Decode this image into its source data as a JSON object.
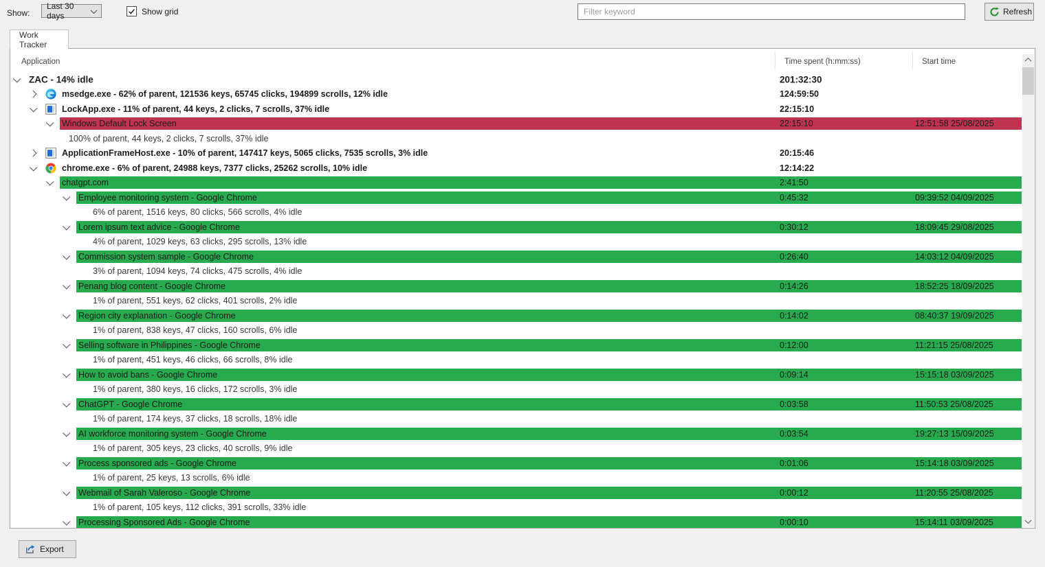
{
  "toolbar": {
    "show_label": "Show:",
    "range_select": {
      "value": "Last 30 days"
    },
    "show_grid": {
      "label": "Show grid",
      "checked": true
    },
    "filter": {
      "placeholder": "Filter keyword",
      "value": ""
    },
    "refresh_label": "Refresh"
  },
  "tab": {
    "label": "Work Tracker"
  },
  "table": {
    "columns": [
      "Application",
      "Time spent (h:mm:ss)",
      "Start time"
    ],
    "rows": [
      {
        "type": "app",
        "level": 0,
        "chevron": "down",
        "icon": null,
        "label": "ZAC - 14% idle",
        "bold": true,
        "big": true,
        "highlight": null,
        "time": "201:32:30",
        "start": ""
      },
      {
        "type": "app",
        "level": 1,
        "chevron": "right",
        "icon": "edge",
        "label": "msedge.exe - 62% of parent, 121536 keys, 65745 clicks, 194899 scrolls, 12% idle",
        "bold": true,
        "highlight": null,
        "time": "124:59:50",
        "start": ""
      },
      {
        "type": "app",
        "level": 1,
        "chevron": "down",
        "icon": "window",
        "label": "LockApp.exe - 11% of parent, 44 keys, 2 clicks, 7 scrolls, 37% idle",
        "bold": true,
        "highlight": null,
        "time": "22:15:10",
        "start": ""
      },
      {
        "type": "app",
        "level": 2,
        "chevron": "down",
        "icon": null,
        "label": "Windows Default Lock Screen",
        "bold": false,
        "highlight": "red",
        "time": "22:15:10",
        "start": "12:51:58 25/08/2025"
      },
      {
        "type": "detail",
        "level": 2,
        "label": "100% of parent, 44 keys, 2 clicks, 7 scrolls, 37% idle"
      },
      {
        "type": "app",
        "level": 1,
        "chevron": "right",
        "icon": "window",
        "label": "ApplicationFrameHost.exe - 10% of parent, 147417 keys, 5065 clicks, 7535 scrolls, 3% idle",
        "bold": true,
        "highlight": null,
        "time": "20:15:46",
        "start": ""
      },
      {
        "type": "app",
        "level": 1,
        "chevron": "down",
        "icon": "chrome",
        "label": "chrome.exe - 6% of parent, 24988 keys, 7377 clicks, 25262 scrolls, 10% idle",
        "bold": true,
        "highlight": null,
        "time": "12:14:22",
        "start": ""
      },
      {
        "type": "app",
        "level": 2,
        "chevron": "down",
        "icon": null,
        "label": "chatgpt.com",
        "bold": false,
        "highlight": "green",
        "time": "2:41:50",
        "start": ""
      },
      {
        "type": "app",
        "level": 3,
        "chevron": "down",
        "icon": null,
        "label": "Employee monitoring system - Google Chrome",
        "bold": false,
        "highlight": "green",
        "time": "0:45:32",
        "start": "09:39:52 04/09/2025"
      },
      {
        "type": "detail",
        "level": 3,
        "label": "6% of parent, 1516 keys, 80 clicks, 566 scrolls, 4% idle"
      },
      {
        "type": "app",
        "level": 3,
        "chevron": "down",
        "icon": null,
        "label": "Lorem ipsum text advice - Google Chrome",
        "bold": false,
        "highlight": "green",
        "time": "0:30:12",
        "start": "18:09:45 29/08/2025"
      },
      {
        "type": "detail",
        "level": 3,
        "label": "4% of parent, 1029 keys, 63 clicks, 295 scrolls, 13% idle"
      },
      {
        "type": "app",
        "level": 3,
        "chevron": "down",
        "icon": null,
        "label": "Commission system sample - Google Chrome",
        "bold": false,
        "highlight": "green",
        "time": "0:26:40",
        "start": "14:03:12 04/09/2025"
      },
      {
        "type": "detail",
        "level": 3,
        "label": "3% of parent, 1094 keys, 74 clicks, 475 scrolls, 4% idle"
      },
      {
        "type": "app",
        "level": 3,
        "chevron": "down",
        "icon": null,
        "label": "Penang blog content - Google Chrome",
        "bold": false,
        "highlight": "green",
        "time": "0:14:26",
        "start": "18:52:25 18/09/2025"
      },
      {
        "type": "detail",
        "level": 3,
        "label": "1% of parent, 551 keys, 62 clicks, 401 scrolls, 2% idle"
      },
      {
        "type": "app",
        "level": 3,
        "chevron": "down",
        "icon": null,
        "label": "Region city explanation - Google Chrome",
        "bold": false,
        "highlight": "green",
        "time": "0:14:02",
        "start": "08:40:37 19/09/2025"
      },
      {
        "type": "detail",
        "level": 3,
        "label": "1% of parent, 838 keys, 47 clicks, 160 scrolls, 6% idle"
      },
      {
        "type": "app",
        "level": 3,
        "chevron": "down",
        "icon": null,
        "label": "Selling software in Philippines - Google Chrome",
        "bold": false,
        "highlight": "green",
        "time": "0:12:00",
        "start": "11:21:15 25/08/2025"
      },
      {
        "type": "detail",
        "level": 3,
        "label": "1% of parent, 451 keys, 46 clicks, 66 scrolls, 8% idle"
      },
      {
        "type": "app",
        "level": 3,
        "chevron": "down",
        "icon": null,
        "label": "How to avoid bans - Google Chrome",
        "bold": false,
        "highlight": "green",
        "time": "0:09:14",
        "start": "15:15:18 03/09/2025"
      },
      {
        "type": "detail",
        "level": 3,
        "label": "1% of parent, 380 keys, 16 clicks, 172 scrolls, 3% idle"
      },
      {
        "type": "app",
        "level": 3,
        "chevron": "down",
        "icon": null,
        "label": "ChatGPT - Google Chrome",
        "bold": false,
        "highlight": "green",
        "time": "0:03:58",
        "start": "11:50:53 25/08/2025"
      },
      {
        "type": "detail",
        "level": 3,
        "label": "1% of parent, 174 keys, 37 clicks, 18 scrolls, 18% idle"
      },
      {
        "type": "app",
        "level": 3,
        "chevron": "down",
        "icon": null,
        "label": "AI workforce monitoring system - Google Chrome",
        "bold": false,
        "highlight": "green",
        "time": "0:03:54",
        "start": "19:27:13 15/09/2025"
      },
      {
        "type": "detail",
        "level": 3,
        "label": "1% of parent, 305 keys, 23 clicks, 40 scrolls, 9% idle"
      },
      {
        "type": "app",
        "level": 3,
        "chevron": "down",
        "icon": null,
        "label": "Process sponsored ads - Google Chrome",
        "bold": false,
        "highlight": "green",
        "time": "0:01:06",
        "start": "15:14:18 03/09/2025"
      },
      {
        "type": "detail",
        "level": 3,
        "label": "1% of parent, 25 keys, 13 scrolls, 6% idle"
      },
      {
        "type": "app",
        "level": 3,
        "chevron": "down",
        "icon": null,
        "label": "Webmail of Sarah Valeroso - Google Chrome",
        "bold": false,
        "highlight": "green",
        "time": "0:00:12",
        "start": "11:20:55 25/08/2025"
      },
      {
        "type": "detail",
        "level": 3,
        "label": "1% of parent, 105 keys, 112 clicks, 391 scrolls, 33% idle"
      },
      {
        "type": "app",
        "level": 3,
        "chevron": "down",
        "icon": null,
        "label": "Processing Sponsored Ads - Google Chrome",
        "bold": false,
        "highlight": "green",
        "time": "0:00:10",
        "start": "15:14:11 03/09/2025"
      }
    ]
  },
  "footer": {
    "export_label": "Export"
  },
  "icon_names": {
    "edge": "edge-browser-icon",
    "window": "app-window-icon",
    "chrome": "chrome-browser-icon"
  },
  "colors": {
    "red_highlight": "#bf3350",
    "green_highlight": "#27ab4e",
    "refresh_icon_green": "#1e8f2e",
    "export_icon_blue": "#1d6fd0"
  }
}
